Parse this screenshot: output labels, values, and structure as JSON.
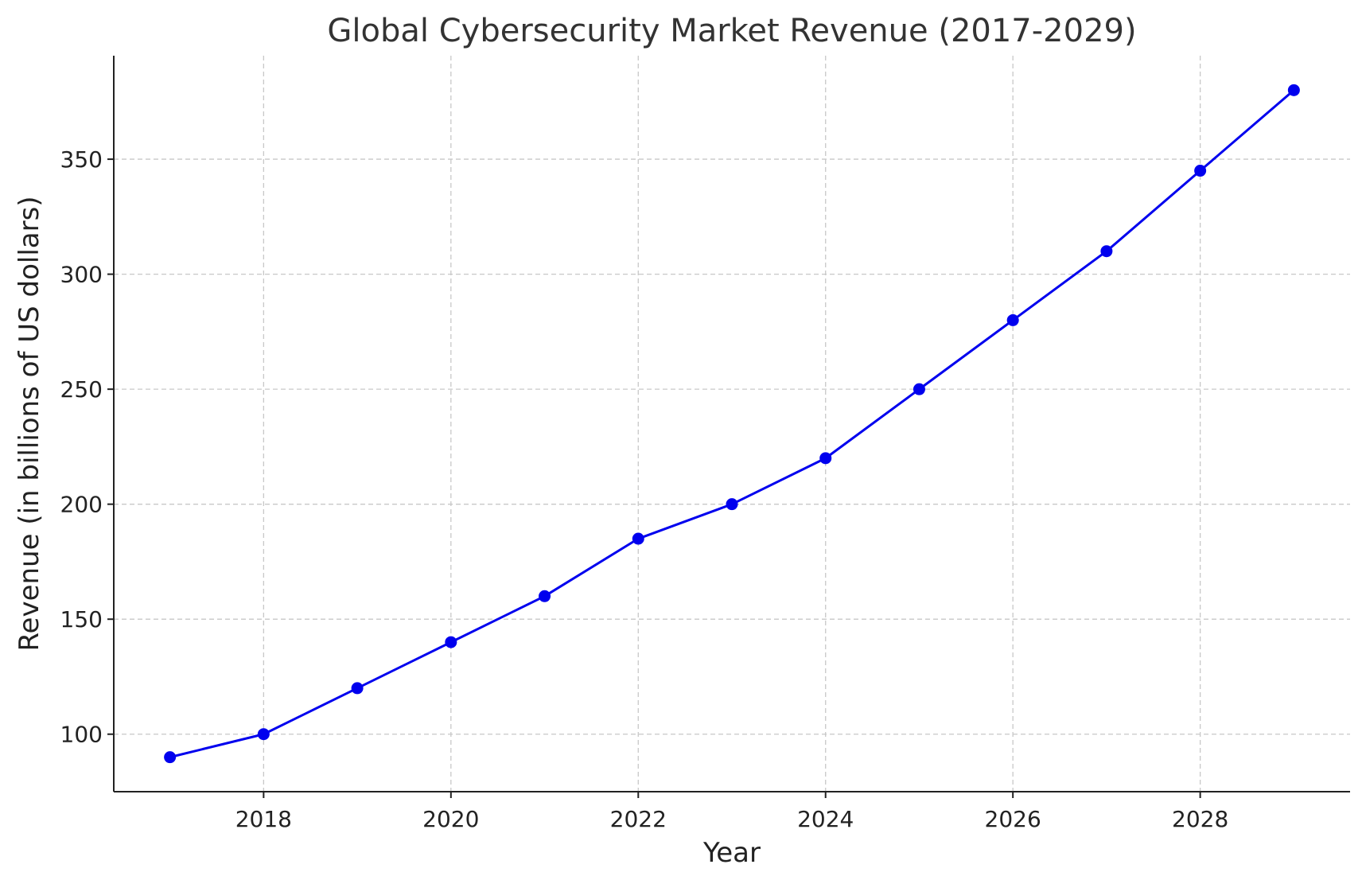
{
  "chart_data": {
    "type": "line",
    "title": "Global Cybersecurity Market Revenue (2017-2029)",
    "xlabel": "Year",
    "ylabel": "Revenue (in billions of US dollars)",
    "x": [
      2017,
      2018,
      2019,
      2020,
      2021,
      2022,
      2023,
      2024,
      2025,
      2026,
      2027,
      2028,
      2029
    ],
    "series": [
      {
        "values": [
          90,
          100,
          120,
          140,
          160,
          185,
          200,
          220,
          250,
          280,
          310,
          345,
          380
        ],
        "color": "#0000ee",
        "marker": "circle"
      }
    ],
    "xticks": [
      2018,
      2020,
      2022,
      2024,
      2026,
      2028
    ],
    "yticks": [
      100,
      150,
      200,
      250,
      300,
      350
    ],
    "xlim": [
      2016.4,
      2029.6
    ],
    "ylim": [
      75,
      395
    ],
    "grid": true,
    "legend": false
  }
}
